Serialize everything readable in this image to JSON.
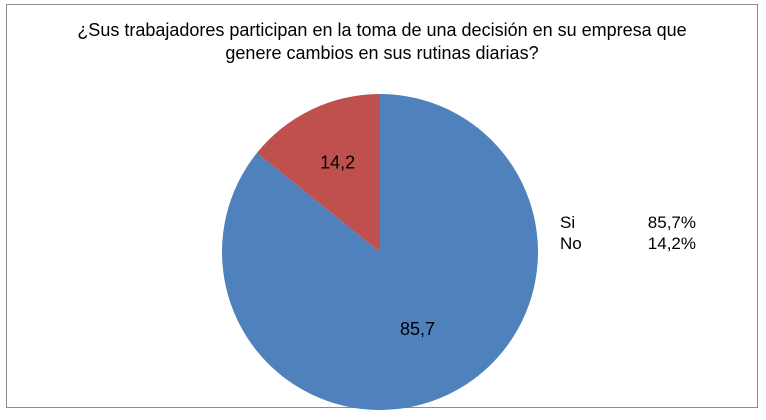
{
  "chart_data": {
    "type": "pie",
    "title_lines": [
      "¿Sus trabajadores participan en la toma de una  decisión en su empresa que",
      "genere cambios en sus rutinas diarias?"
    ],
    "slices": [
      {
        "name": "Si",
        "value": 85.7,
        "data_label": "85,7",
        "legend_value": "85,7%",
        "color": "#4f81bd"
      },
      {
        "name": "No",
        "value": 14.2,
        "data_label": "14,2",
        "legend_value": "14,2%",
        "color": "#c0504d"
      }
    ],
    "legend_position": "right"
  }
}
